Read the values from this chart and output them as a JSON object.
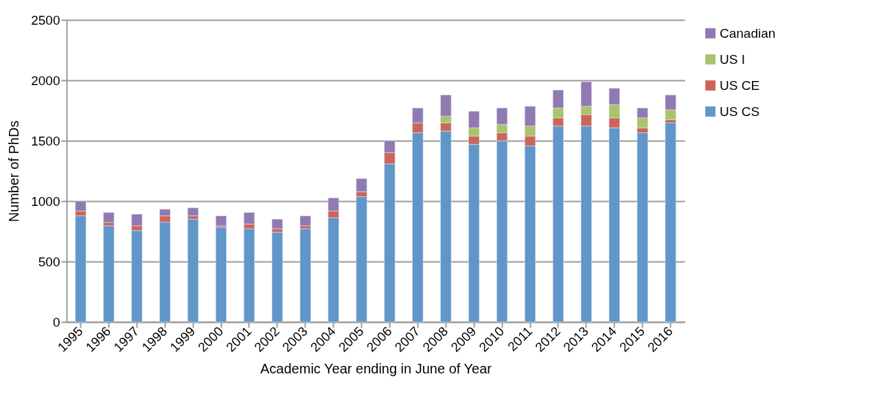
{
  "chart_data": {
    "type": "bar",
    "stacked": true,
    "xlabel": "Academic Year ending in June of Year",
    "ylabel": "Number of PhDs",
    "categories": [
      "1995",
      "1996",
      "1997",
      "1998",
      "1999",
      "2000",
      "2001",
      "2002",
      "2003",
      "2004",
      "2005",
      "2006",
      "2007",
      "2008",
      "2009",
      "2010",
      "2011",
      "2012",
      "2013",
      "2014",
      "2015",
      "2016"
    ],
    "series": [
      {
        "name": "US CS",
        "color": "#6096c8",
        "values": [
          879,
          796,
          757,
          826,
          851,
          784,
          771,
          743,
          771,
          863,
          1037,
          1308,
          1566,
          1580,
          1470,
          1500,
          1457,
          1621,
          1621,
          1607,
          1566,
          1648
        ]
      },
      {
        "name": "US CE",
        "color": "#cc6559",
        "values": [
          39,
          28,
          39,
          52,
          27,
          12,
          39,
          28,
          25,
          55,
          41,
          94,
          82,
          68,
          69,
          66,
          82,
          68,
          95,
          82,
          41,
          26
        ]
      },
      {
        "name": "US I",
        "color": "#a9c46a",
        "values": [
          null,
          null,
          null,
          null,
          null,
          null,
          null,
          null,
          null,
          null,
          null,
          null,
          null,
          55,
          68,
          69,
          82,
          82,
          69,
          110,
          82,
          82
        ]
      },
      {
        "name": "Canadian",
        "color": "#9179b1",
        "values": [
          82,
          82,
          96,
          55,
          67,
          82,
          96,
          80,
          82,
          109,
          109,
          98,
          123,
          176,
          137,
          136,
          164,
          149,
          203,
          135,
          82,
          123
        ]
      }
    ],
    "ylim": [
      0,
      2500
    ],
    "yticks": [
      0,
      500,
      1000,
      1500,
      2000,
      2500
    ],
    "grid": "y",
    "legend": "right"
  }
}
